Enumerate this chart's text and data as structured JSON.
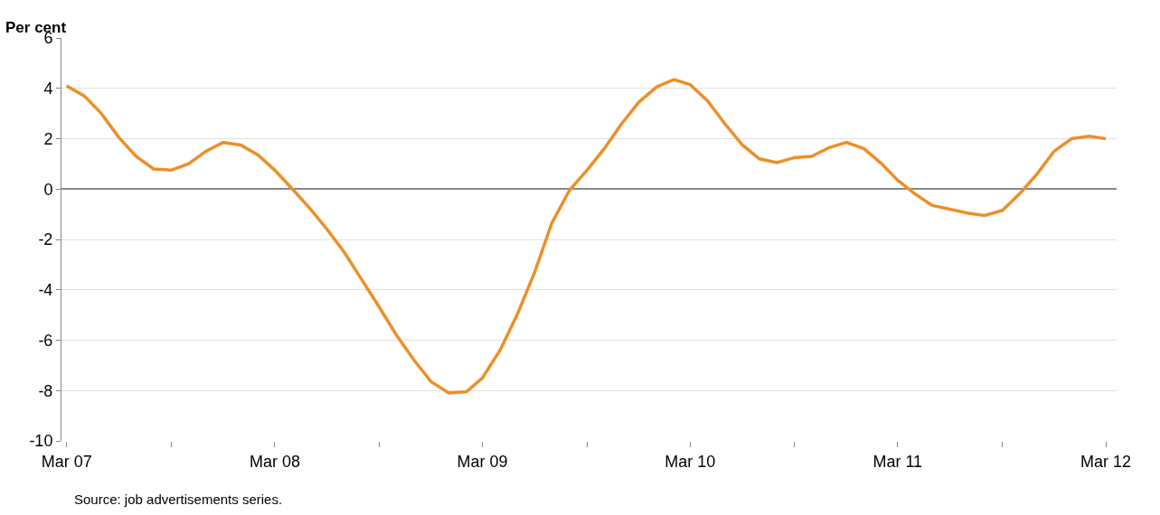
{
  "chart_data": {
    "type": "line",
    "ylabel": "Per cent",
    "x": [
      "2007-03",
      "2007-04",
      "2007-05",
      "2007-06",
      "2007-07",
      "2007-08",
      "2007-09",
      "2007-10",
      "2007-11",
      "2007-12",
      "2008-01",
      "2008-02",
      "2008-03",
      "2008-04",
      "2008-05",
      "2008-06",
      "2008-07",
      "2008-08",
      "2008-09",
      "2008-10",
      "2008-11",
      "2008-12",
      "2009-01",
      "2009-02",
      "2009-03",
      "2009-04",
      "2009-05",
      "2009-06",
      "2009-07",
      "2009-08",
      "2009-09",
      "2009-10",
      "2009-11",
      "2009-12",
      "2010-01",
      "2010-02",
      "2010-03",
      "2010-04",
      "2010-05",
      "2010-06",
      "2010-07",
      "2010-08",
      "2010-09",
      "2010-10",
      "2010-11",
      "2010-12",
      "2011-01",
      "2011-02",
      "2011-03",
      "2011-04",
      "2011-05",
      "2011-06",
      "2011-07",
      "2011-08",
      "2011-09",
      "2011-10",
      "2011-11",
      "2011-12",
      "2012-01",
      "2012-02",
      "2012-03"
    ],
    "series": [
      {
        "color": "#ec8f2a",
        "values": [
          4.1,
          3.7,
          3.0,
          2.05,
          1.3,
          0.8,
          0.75,
          1.0,
          1.5,
          1.85,
          1.75,
          1.35,
          0.75,
          0.0,
          -0.75,
          -1.6,
          -2.5,
          -3.6,
          -4.7,
          -5.8,
          -6.8,
          -7.65,
          -8.1,
          -8.05,
          -7.5,
          -6.4,
          -5.0,
          -3.3,
          -1.35,
          -0.05,
          0.75,
          1.6,
          2.6,
          3.45,
          4.05,
          4.35,
          4.15,
          3.5,
          2.6,
          1.75,
          1.2,
          1.05,
          1.25,
          1.3,
          1.65,
          1.85,
          1.6,
          1.0,
          0.35,
          -0.2,
          -0.65,
          -0.8,
          -0.95,
          -1.05,
          -0.85,
          -0.2,
          0.6,
          1.5,
          2.0,
          2.1,
          2.0
        ]
      }
    ],
    "xlim": [
      "2007-02-20",
      "2012-03-20"
    ],
    "xticks": [
      {
        "value": "2007-03",
        "label": "Mar 07"
      },
      {
        "value": "2007-09",
        "label": null
      },
      {
        "value": "2008-03",
        "label": "Mar 08"
      },
      {
        "value": "2008-09",
        "label": null
      },
      {
        "value": "2009-03",
        "label": "Mar 09"
      },
      {
        "value": "2009-09",
        "label": null
      },
      {
        "value": "2010-03",
        "label": "Mar 10"
      },
      {
        "value": "2010-09",
        "label": null
      },
      {
        "value": "2011-03",
        "label": "Mar 11"
      },
      {
        "value": "2011-09",
        "label": null
      },
      {
        "value": "2012-03",
        "label": "Mar 12"
      }
    ],
    "ylim": [
      -10,
      6
    ],
    "yticks": [
      -10,
      -8,
      -6,
      -4,
      -2,
      0,
      2,
      4,
      6
    ],
    "grid": "y",
    "legend": false,
    "marker": "none",
    "line_style": "solid",
    "annotations": [
      "Source: job advertisements series."
    ]
  }
}
